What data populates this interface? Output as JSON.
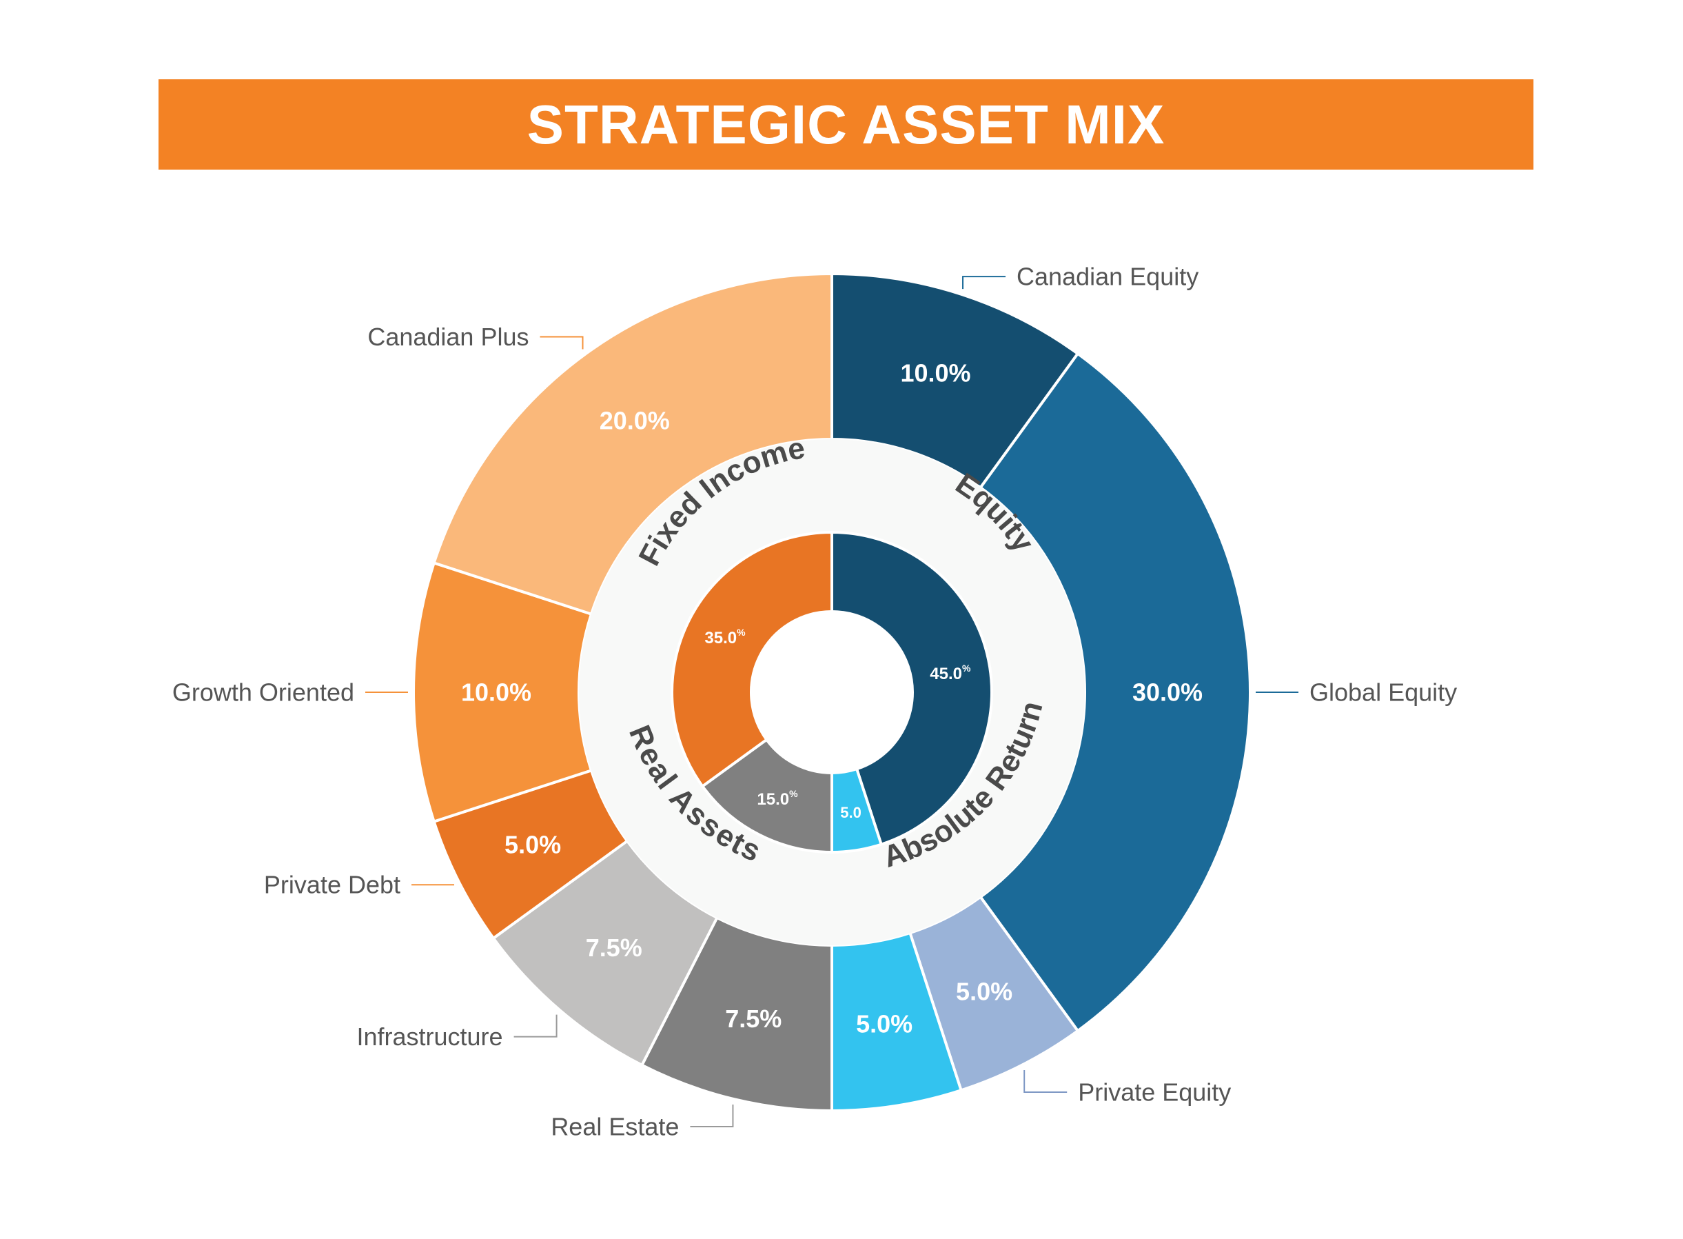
{
  "chart_data": {
    "type": "pie",
    "title": "STRATEGIC ASSET MIX",
    "inner_ring": [
      {
        "category": "Equity",
        "value": 45.0,
        "label": "45.0",
        "color": "#144e70"
      },
      {
        "category": "Absolute Return",
        "value": 5.0,
        "label": "5.0",
        "color": "#33c3ef"
      },
      {
        "category": "Real Assets",
        "value": 15.0,
        "label": "15.0",
        "color": "#808080"
      },
      {
        "category": "Fixed Income",
        "value": 35.0,
        "label": "35.0",
        "color": "#e87524"
      }
    ],
    "outer_ring": [
      {
        "name": "Canadian Equity",
        "value": 10.0,
        "label": "10.0%",
        "color": "#144e70",
        "group": "Equity"
      },
      {
        "name": "Global Equity",
        "value": 30.0,
        "label": "30.0%",
        "color": "#1b6a98",
        "group": "Equity"
      },
      {
        "name": "Private Equity",
        "value": 5.0,
        "label": "5.0%",
        "color": "#9ab3d8",
        "group": "Equity"
      },
      {
        "name": "",
        "value": 5.0,
        "label": "5.0%",
        "color": "#33c3ef",
        "group": "Absolute Return"
      },
      {
        "name": "Real Estate",
        "value": 7.5,
        "label": "7.5%",
        "color": "#808080",
        "group": "Real Assets"
      },
      {
        "name": "Infrastructure",
        "value": 7.5,
        "label": "7.5%",
        "color": "#c1c0bf",
        "group": "Real Assets"
      },
      {
        "name": "Private Debt",
        "value": 5.0,
        "label": "5.0%",
        "color": "#e87524",
        "group": "Fixed Income"
      },
      {
        "name": "Growth Oriented",
        "value": 10.0,
        "label": "10.0%",
        "color": "#f5923a",
        "group": "Fixed Income"
      },
      {
        "name": "Canadian Plus",
        "value": 20.0,
        "label": "20.0%",
        "color": "#fab87a",
        "group": "Fixed Income"
      }
    ],
    "percent_sign": "%",
    "legend": "none",
    "grid": false
  },
  "colors": {
    "banner": "#f38224",
    "band": "#f8f9f8",
    "label_text": "#555555",
    "band_text": "#4a4a4a"
  }
}
